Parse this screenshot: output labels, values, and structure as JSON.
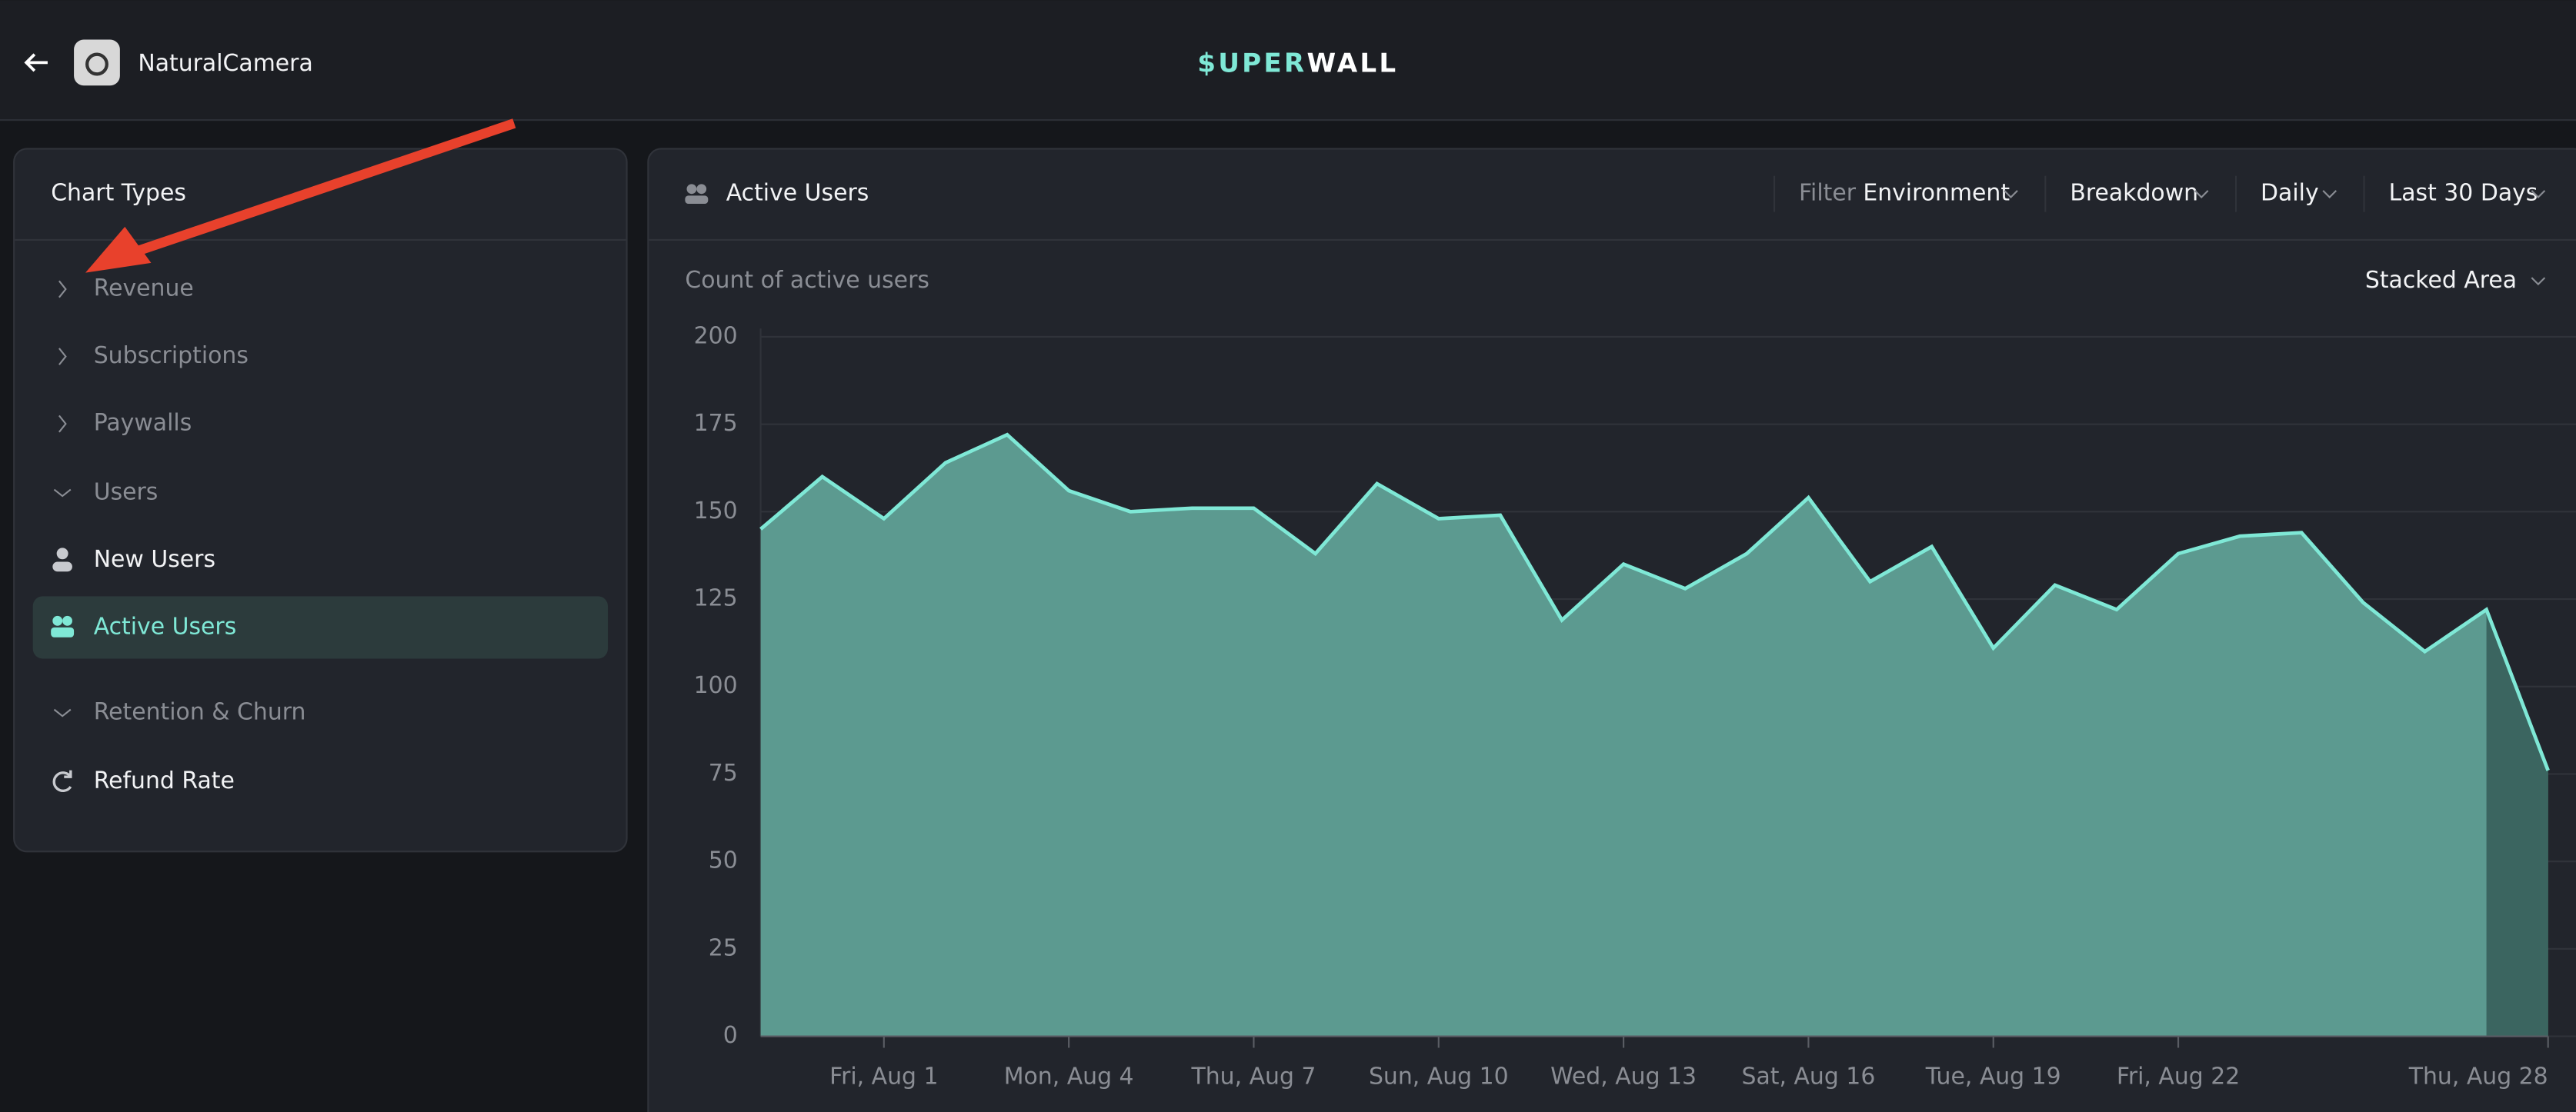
{
  "header": {
    "app_name": "NaturalCamera",
    "logo_a": "$UPER",
    "logo_b": "WALL"
  },
  "sidebar": {
    "title": "Chart Types",
    "items": [
      "Revenue",
      "Subscriptions",
      "Paywalls",
      "Users",
      "New Users",
      "Active Users",
      "Retention & Churn",
      "Refund Rate"
    ]
  },
  "panel": {
    "title": "Active Users",
    "filter_label": "Filter",
    "dropdowns": [
      "Environment",
      "Breakdown",
      "Daily",
      "Last 30 Days"
    ],
    "chart_style": "Stacked Area"
  },
  "chart_data": {
    "type": "area",
    "subtitle": "Count of active users",
    "categories": [
      null,
      null,
      "Fri, Aug 1",
      null,
      null,
      "Mon, Aug 4",
      null,
      null,
      "Thu, Aug 7",
      null,
      null,
      "Sun, Aug 10",
      null,
      null,
      "Wed, Aug 13",
      null,
      null,
      "Sat, Aug 16",
      null,
      null,
      "Tue, Aug 19",
      null,
      null,
      "Fri, Aug 22",
      null,
      null,
      null,
      null,
      null,
      "Thu, Aug 28"
    ],
    "series": [
      {
        "color": "#5c9a90",
        "values": [
          145,
          160,
          148,
          164,
          172,
          156,
          150,
          151,
          151,
          138,
          158,
          148,
          149,
          119,
          135,
          128,
          138,
          154,
          130,
          140,
          111,
          129,
          122,
          138,
          143,
          144,
          124,
          110,
          122,
          76
        ]
      }
    ],
    "ylim": [
      0,
      200
    ],
    "yticks": [
      0,
      25,
      50,
      75,
      100,
      125,
      150,
      175,
      200
    ],
    "grid": true
  }
}
